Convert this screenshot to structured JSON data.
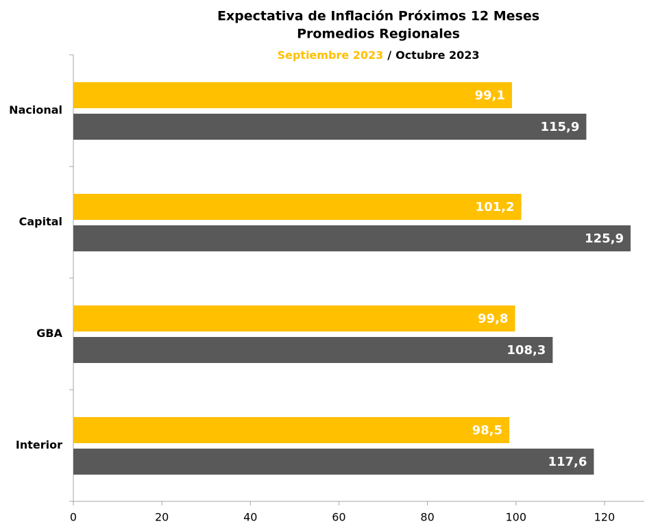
{
  "chart_data": {
    "type": "bar",
    "orientation": "horizontal",
    "title": "Expectativa de Inflación Próximos 12 Meses",
    "subtitle": "Promedios Regionales",
    "legend_separator": "/",
    "categories": [
      "Nacional",
      "Capital",
      "GBA",
      "Interior"
    ],
    "series": [
      {
        "name": "Septiembre 2023",
        "color": "#ffc000",
        "values": [
          99.1,
          101.2,
          99.8,
          98.5
        ],
        "value_labels": [
          "99,1",
          "101,2",
          "99,8",
          "98,5"
        ]
      },
      {
        "name": "Octubre 2023",
        "color": "#595959",
        "values": [
          115.9,
          125.9,
          108.3,
          117.6
        ],
        "value_labels": [
          "115,9",
          "125,9",
          "108,3",
          "117,6"
        ]
      }
    ],
    "xlim": [
      0,
      129
    ],
    "xticks": [
      0,
      20,
      40,
      60,
      80,
      100,
      120
    ],
    "grid": false
  }
}
